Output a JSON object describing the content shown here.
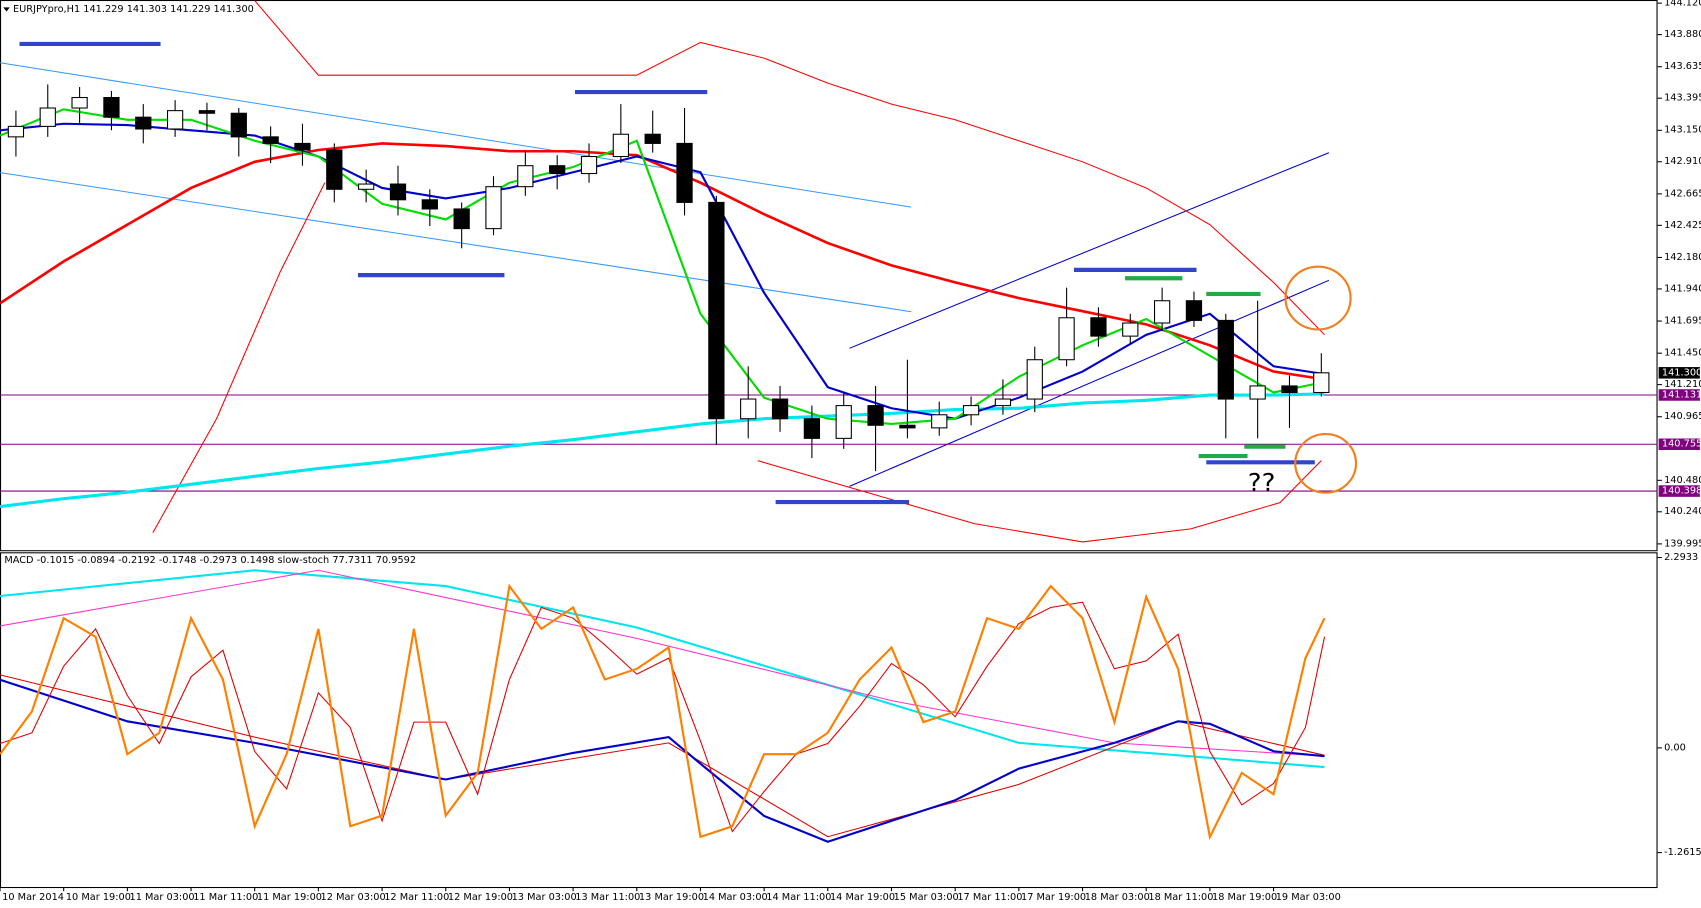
{
  "header": "EURJPYpro,H1  141.229 141.303 141.229 141.300",
  "chart_data": {
    "type": "candlestick",
    "categories": [
      "10 Mar 2014",
      "10 Mar 19:00",
      "11 Mar 03:00",
      "11 Mar 11:00",
      "11 Mar 19:00",
      "12 Mar 03:00",
      "12 Mar 11:00",
      "12 Mar 19:00",
      "13 Mar 03:00",
      "13 Mar 11:00",
      "13 Mar 19:00",
      "14 Mar 03:00",
      "14 Mar 11:00",
      "14 Mar 19:00",
      "15 Mar 03:00",
      "17 Mar 11:00",
      "17 Mar 19:00",
      "18 Mar 03:00",
      "18 Mar 11:00",
      "18 Mar 19:00",
      "19 Mar 03:00"
    ],
    "candles": {
      "x": [
        0.25,
        0.75,
        1.25,
        1.75,
        2.25,
        2.75,
        3.25,
        3.75,
        4.25,
        4.75,
        5.25,
        5.75,
        6.25,
        6.75,
        7.25,
        7.75,
        8.25,
        8.75,
        9.25,
        9.75,
        10.25,
        10.75,
        11.25,
        11.75,
        12.25,
        12.75,
        13.25,
        13.75,
        14.25,
        14.75,
        15.25,
        15.75,
        16.25,
        16.75,
        17.25,
        17.75,
        18.25,
        18.75,
        19.25,
        19.75,
        20.25,
        20.75
      ],
      "open": [
        143.1,
        143.18,
        143.32,
        143.4,
        143.25,
        143.16,
        143.3,
        143.28,
        143.1,
        143.05,
        143.0,
        142.7,
        142.74,
        142.62,
        142.55,
        142.4,
        142.72,
        142.88,
        142.82,
        142.95,
        143.12,
        143.05,
        142.6,
        140.95,
        141.1,
        140.95,
        140.8,
        141.05,
        140.9,
        140.88,
        140.98,
        141.05,
        141.1,
        141.4,
        141.72,
        141.58,
        141.68,
        141.85,
        141.7,
        141.1,
        141.2,
        141.15
      ],
      "high": [
        143.3,
        143.5,
        143.48,
        143.45,
        143.35,
        143.38,
        143.36,
        143.32,
        143.18,
        143.2,
        143.05,
        142.85,
        142.88,
        142.7,
        142.6,
        142.8,
        143.0,
        142.96,
        143.05,
        143.35,
        143.3,
        143.32,
        142.65,
        141.35,
        141.2,
        141.05,
        141.15,
        141.2,
        141.4,
        141.08,
        141.12,
        141.25,
        141.5,
        141.95,
        141.8,
        141.75,
        141.95,
        141.92,
        141.75,
        141.85,
        141.28,
        141.45
      ],
      "low": [
        142.95,
        143.1,
        143.2,
        143.15,
        143.05,
        143.1,
        143.15,
        142.95,
        142.9,
        142.88,
        142.6,
        142.6,
        142.5,
        142.42,
        142.25,
        142.35,
        142.65,
        142.7,
        142.75,
        142.9,
        142.98,
        142.5,
        140.75,
        140.8,
        140.85,
        140.65,
        140.72,
        140.55,
        140.8,
        140.82,
        140.9,
        140.98,
        141.0,
        141.35,
        141.5,
        141.52,
        141.62,
        141.65,
        140.8,
        140.8,
        140.88,
        141.12
      ],
      "close": [
        143.18,
        143.32,
        143.4,
        143.25,
        143.16,
        143.3,
        143.28,
        143.1,
        143.05,
        143.0,
        142.7,
        142.74,
        142.62,
        142.55,
        142.4,
        142.72,
        142.88,
        142.82,
        142.95,
        143.12,
        143.05,
        142.6,
        140.95,
        141.1,
        140.95,
        140.8,
        141.05,
        140.9,
        140.88,
        140.98,
        141.05,
        141.1,
        141.4,
        141.72,
        141.58,
        141.68,
        141.85,
        141.7,
        141.1,
        141.2,
        141.15,
        141.3
      ]
    },
    "ylim": [
      139.939,
      144.144
    ],
    "yticks": [
      {
        "value": 144.12,
        "label": "144.120"
      },
      {
        "value": 143.88,
        "label": "143.880"
      },
      {
        "value": 143.635,
        "label": "143.635"
      },
      {
        "value": 143.395,
        "label": "143.395"
      },
      {
        "value": 143.15,
        "label": "143.150"
      },
      {
        "value": 142.91,
        "label": "142.910"
      },
      {
        "value": 142.665,
        "label": "142.665"
      },
      {
        "value": 142.425,
        "label": "142.425"
      },
      {
        "value": 142.18,
        "label": "142.180"
      },
      {
        "value": 141.94,
        "label": "141.940"
      },
      {
        "value": 141.695,
        "label": "141.695"
      },
      {
        "value": 141.45,
        "label": "141.450"
      },
      {
        "value": 141.21,
        "label": "141.210"
      },
      {
        "value": 140.965,
        "label": "140.965"
      },
      {
        "value": 140.48,
        "label": "140.480"
      },
      {
        "value": 140.24,
        "label": "140.240"
      },
      {
        "value": 139.995,
        "label": "139.995"
      }
    ],
    "lines": [
      {
        "color": "#ff0000",
        "width": 2.5,
        "x": [
          0,
          1,
          2,
          3,
          4,
          5,
          6,
          7,
          8,
          9,
          10,
          11,
          12,
          13,
          14,
          15,
          16,
          17,
          18,
          19,
          20,
          20.8
        ],
        "values": [
          141.83,
          142.15,
          142.43,
          142.71,
          142.91,
          143.0,
          143.05,
          143.03,
          142.99,
          142.99,
          142.96,
          142.75,
          142.51,
          142.29,
          142.12,
          141.99,
          141.87,
          141.77,
          141.67,
          141.51,
          141.31,
          141.25
        ]
      },
      {
        "color": "#ff0000",
        "width": 1,
        "x": [
          4,
          5,
          6,
          7,
          8,
          9,
          10,
          11,
          12,
          13,
          14,
          15,
          16,
          17,
          18,
          19,
          20,
          20.8
        ],
        "values": [
          144.14,
          143.57,
          143.57,
          143.57,
          143.57,
          143.57,
          143.57,
          143.82,
          143.7,
          143.51,
          143.35,
          143.23,
          143.07,
          142.91,
          142.71,
          142.43,
          141.99,
          141.59
        ]
      },
      {
        "color": "#ff0000",
        "width": 1,
        "x": [
          2.4,
          3.4,
          4.4,
          5.1,
          5.6,
          11.9,
          13.6,
          15.3,
          17,
          18.7,
          20.1,
          20.75
        ],
        "values": [
          140.08,
          140.95,
          142.07,
          142.75,
          null,
          140.63,
          140.39,
          140.15,
          140.01,
          140.11,
          140.31,
          140.63
        ]
      },
      {
        "color": "#00e5ee",
        "width": 3,
        "x": [
          0,
          1,
          2,
          3,
          4,
          5,
          6,
          7,
          8,
          9,
          10,
          11,
          12,
          13,
          14,
          15,
          16,
          17,
          18,
          19,
          20,
          20.8
        ],
        "values": [
          140.28,
          140.34,
          140.39,
          140.45,
          140.51,
          140.57,
          140.62,
          140.68,
          140.74,
          140.79,
          140.85,
          140.91,
          140.95,
          140.97,
          140.99,
          141.02,
          141.03,
          141.07,
          141.09,
          141.13,
          141.13,
          141.14
        ]
      },
      {
        "color": "#0000cc",
        "width": 2,
        "x": [
          0,
          1,
          2,
          3,
          4,
          5,
          6,
          7,
          8,
          9,
          10,
          11,
          12,
          13,
          14,
          15,
          16,
          17,
          18,
          19,
          20,
          20.8
        ],
        "values": [
          143.15,
          143.2,
          143.19,
          143.15,
          143.11,
          142.95,
          142.71,
          142.63,
          142.71,
          142.83,
          142.95,
          142.83,
          141.91,
          141.19,
          141.03,
          140.95,
          141.11,
          141.31,
          141.59,
          141.75,
          141.35,
          141.29
        ]
      },
      {
        "color": "#00dd00",
        "width": 2,
        "x": [
          0,
          1,
          2,
          3,
          4,
          5,
          6,
          7,
          8,
          9,
          10,
          11,
          12,
          13,
          14,
          15,
          16,
          17,
          18,
          19,
          20,
          20.8
        ],
        "values": [
          143.11,
          143.31,
          143.23,
          143.23,
          143.07,
          142.95,
          142.59,
          142.47,
          142.75,
          142.87,
          143.07,
          141.75,
          141.11,
          140.95,
          140.91,
          140.95,
          141.27,
          141.51,
          141.71,
          141.43,
          141.15,
          141.23
        ]
      }
    ],
    "levels": [
      {
        "value": 141.3,
        "label": "141.300",
        "color": "#000000",
        "line": false
      },
      {
        "value": 141.131,
        "label": "141.131",
        "color": "#800080",
        "line": true
      },
      {
        "value": 140.755,
        "label": "140.755",
        "color": "#800080",
        "line": true
      },
      {
        "value": 140.398,
        "label": "140.398",
        "color": "#800080",
        "line": true
      }
    ],
    "annotation": "??",
    "macd": {
      "header": "MACD -0.1015 -0.0894 -0.2192 -0.1748 -0.2973 0.1498 slow-stoch 77.7311 70.9592",
      "ylim": [
        -1.676,
        2.344
      ],
      "yticks": [
        2.2933,
        {
          "value": 0,
          "label": "0.00"
        },
        -1.2615
      ],
      "y2lim": [
        -18.8,
        106.3
      ],
      "series": [
        {
          "color": "#00e5ee",
          "width": 2,
          "x": [
            0,
            4,
            7,
            10,
            13,
            16,
            18.5,
            20.8
          ],
          "values": [
            1.83,
            2.14,
            1.95,
            1.45,
            0.76,
            0.06,
            -0.09,
            -0.23
          ]
        },
        {
          "color": "#ff33cc",
          "width": 1,
          "x": [
            0,
            5,
            10,
            14,
            17.5,
            20.8
          ],
          "values": [
            1.47,
            2.14,
            1.32,
            0.57,
            0.06,
            -0.1
          ]
        },
        {
          "color": "#e00000",
          "width": 1,
          "x": [
            0,
            4,
            7,
            10.5,
            13,
            16,
            18.5,
            20.8
          ],
          "values": [
            0.88,
            0.13,
            -0.38,
            0.06,
            -1.07,
            -0.44,
            0.32,
            -0.09
          ]
        },
        {
          "color": "#0000cc",
          "width": 2,
          "x": [
            0,
            2,
            4,
            7,
            9,
            10.5,
            11,
            12,
            13,
            14,
            15,
            16,
            17.5,
            18.5,
            19,
            20,
            20.8
          ],
          "values": [
            0.82,
            0.32,
            0.06,
            -0.38,
            -0.06,
            0.13,
            -0.19,
            -0.82,
            -1.13,
            -0.88,
            -0.63,
            -0.25,
            0.06,
            0.32,
            0.29,
            -0.04,
            -0.1
          ]
        },
        {
          "color": "#e00000",
          "width": 1,
          "axis": "y2",
          "x": [
            0,
            0.5,
            1,
            1.5,
            2,
            2.5,
            3,
            3.5,
            4,
            4.5,
            5,
            5.5,
            6,
            6.5,
            7,
            7.5,
            8,
            8.5,
            9,
            9.5,
            10,
            10.5,
            11,
            11.5,
            12,
            12.5,
            13,
            13.5,
            14,
            14.5,
            15,
            15.5,
            16,
            16.5,
            17,
            17.5,
            18,
            18.5,
            19,
            19.5,
            20,
            20.5,
            20.8
          ],
          "values": [
            35,
            39,
            64,
            78,
            53,
            35,
            60,
            70,
            32,
            18,
            54,
            41,
            6,
            43,
            43,
            16,
            59,
            86,
            82,
            72,
            61,
            67,
            36,
            2,
            17,
            31,
            35,
            49,
            65,
            57,
            45,
            64,
            80,
            86,
            88,
            63,
            66,
            76,
            32,
            12,
            20,
            41,
            75
          ]
        },
        {
          "color": "#ff8000",
          "width": 2,
          "axis": "y2",
          "x": [
            0,
            0.5,
            1,
            1.5,
            2,
            2.5,
            3,
            3.5,
            4,
            4.5,
            5,
            5.5,
            6,
            6.5,
            7,
            7.5,
            8,
            8.5,
            9,
            9.5,
            10,
            10.5,
            11,
            11.5,
            12,
            12.5,
            13,
            13.5,
            14,
            14.5,
            15,
            15.5,
            16,
            16.5,
            17,
            17.5,
            18,
            18.5,
            19,
            19.5,
            20,
            20.5,
            20.8
          ],
          "values": [
            31,
            47,
            82,
            75,
            31,
            39,
            82,
            59,
            4,
            31,
            78,
            4,
            8,
            78,
            8,
            24,
            94,
            78,
            86,
            59,
            63,
            71,
            0,
            4,
            31,
            31,
            39,
            59,
            71,
            43,
            47,
            82,
            78,
            94,
            82,
            43,
            90,
            63,
            0,
            24,
            16,
            67,
            82
          ]
        }
      ]
    }
  }
}
